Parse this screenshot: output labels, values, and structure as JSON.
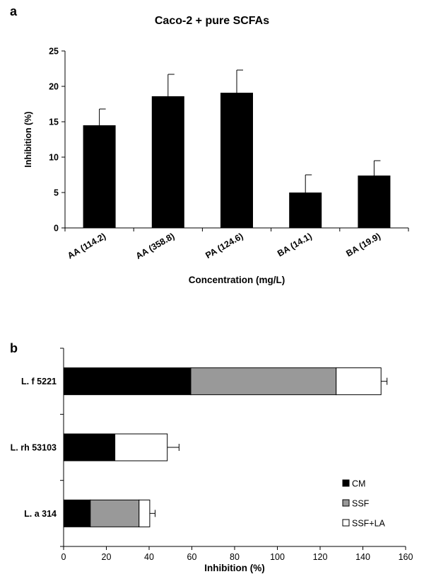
{
  "chart_data": [
    {
      "panel_label": "a",
      "type": "bar",
      "title": "Caco-2 + pure SCFAs",
      "xlabel": "Concentration (mg/L)",
      "ylabel": "Inhibition (%)",
      "ylim": [
        0,
        25
      ],
      "yticks": [
        "0",
        "5",
        "10",
        "15",
        "20",
        "25"
      ],
      "categories": [
        "AA (114.2)",
        "AA (358.8)",
        "PA (124.6)",
        "BA (14.1)",
        "BA (19.9)"
      ],
      "values": [
        14.5,
        18.6,
        19.1,
        5.0,
        7.4
      ],
      "errors": [
        2.3,
        3.1,
        3.2,
        2.5,
        2.1
      ],
      "bar_color": "#000000"
    },
    {
      "panel_label": "b",
      "type": "bar",
      "orientation": "horizontal-stacked",
      "xlabel": "Inhibition (%)",
      "xlim": [
        0,
        160
      ],
      "xticks": [
        "0",
        "20",
        "40",
        "60",
        "80",
        "100",
        "120",
        "140",
        "160"
      ],
      "categories": [
        "L. f 5221",
        "L. rh 53103",
        "L. a 314"
      ],
      "legend_position": "bottom-right",
      "series": [
        {
          "name": "CM",
          "color": "#000000",
          "values": [
            59.5,
            24.0,
            12.5
          ],
          "errors": [
            4.2,
            2.5,
            2.3
          ]
        },
        {
          "name": "SSF",
          "color": "#999999",
          "values": [
            68.0,
            0,
            22.8
          ],
          "errors": [
            5.0,
            0,
            2.7
          ]
        },
        {
          "name": "SSF+LA",
          "color": "#ffffff",
          "values": [
            21.0,
            24.5,
            5.0
          ],
          "errors": [
            2.8,
            5.5,
            2.5
          ]
        }
      ]
    }
  ]
}
